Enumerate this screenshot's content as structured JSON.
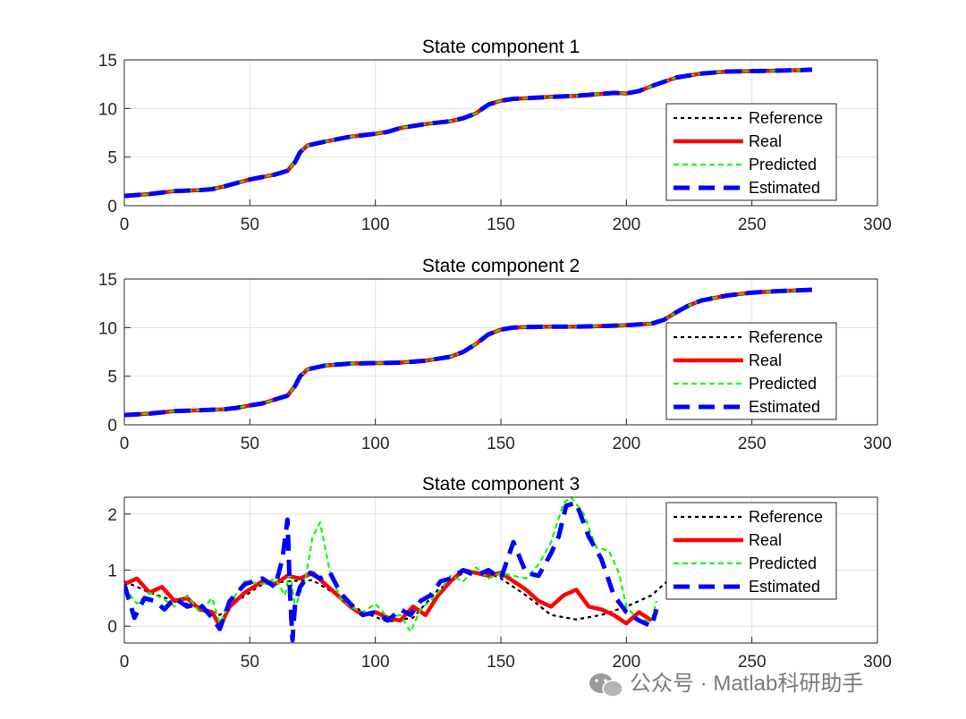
{
  "chart_data": [
    {
      "type": "line",
      "title": "State component 1",
      "xlabel": "",
      "ylabel": "",
      "xlim": [
        0,
        300
      ],
      "ylim": [
        0,
        15
      ],
      "xticks": [
        0,
        50,
        100,
        150,
        200,
        250,
        300
      ],
      "yticks": [
        0,
        5,
        10,
        15
      ],
      "grid": true,
      "legend": "bottom-right",
      "series": [
        {
          "name": "Reference",
          "color": "#000000",
          "style": "dotted"
        },
        {
          "name": "Real",
          "color": "#ff0000",
          "style": "solid"
        },
        {
          "name": "Predicted",
          "color": "#00ff00",
          "style": "dashed"
        },
        {
          "name": "Estimated",
          "color": "#0000ff",
          "style": "dashed-thick"
        }
      ],
      "x": [
        0,
        10,
        20,
        30,
        35,
        40,
        50,
        60,
        65,
        68,
        70,
        73,
        80,
        90,
        100,
        105,
        110,
        120,
        130,
        135,
        140,
        145,
        150,
        155,
        160,
        170,
        180,
        190,
        195,
        200,
        205,
        210,
        220,
        230,
        240,
        250,
        260,
        270,
        274
      ],
      "values": [
        1.0,
        1.2,
        1.5,
        1.6,
        1.7,
        2.0,
        2.7,
        3.2,
        3.6,
        4.5,
        5.5,
        6.2,
        6.6,
        7.1,
        7.4,
        7.6,
        8.0,
        8.4,
        8.7,
        9.0,
        9.5,
        10.4,
        10.8,
        11.0,
        11.05,
        11.2,
        11.3,
        11.5,
        11.6,
        11.55,
        11.8,
        12.3,
        13.2,
        13.6,
        13.8,
        13.85,
        13.9,
        13.95,
        14.0
      ]
    },
    {
      "type": "line",
      "title": "State component 2",
      "xlabel": "",
      "ylabel": "",
      "xlim": [
        0,
        300
      ],
      "ylim": [
        0,
        15
      ],
      "xticks": [
        0,
        50,
        100,
        150,
        200,
        250,
        300
      ],
      "yticks": [
        0,
        5,
        10,
        15
      ],
      "grid": true,
      "legend": "bottom-right",
      "series": [
        {
          "name": "Reference",
          "color": "#000000",
          "style": "dotted"
        },
        {
          "name": "Real",
          "color": "#ff0000",
          "style": "solid"
        },
        {
          "name": "Predicted",
          "color": "#00ff00",
          "style": "dashed"
        },
        {
          "name": "Estimated",
          "color": "#0000ff",
          "style": "dashed-thick"
        }
      ],
      "x": [
        0,
        10,
        20,
        30,
        40,
        45,
        50,
        55,
        60,
        65,
        68,
        70,
        73,
        80,
        90,
        100,
        110,
        120,
        130,
        135,
        140,
        145,
        150,
        155,
        160,
        170,
        180,
        190,
        200,
        210,
        215,
        220,
        225,
        230,
        240,
        250,
        260,
        270,
        274
      ],
      "values": [
        1.0,
        1.15,
        1.4,
        1.5,
        1.6,
        1.75,
        2.0,
        2.2,
        2.6,
        3.0,
        4.0,
        5.0,
        5.7,
        6.1,
        6.3,
        6.35,
        6.4,
        6.6,
        7.0,
        7.5,
        8.3,
        9.3,
        9.8,
        10.0,
        10.05,
        10.1,
        10.1,
        10.15,
        10.25,
        10.4,
        10.8,
        11.6,
        12.3,
        12.8,
        13.3,
        13.6,
        13.75,
        13.85,
        13.9
      ]
    },
    {
      "type": "line",
      "title": "State component 3",
      "xlabel": "",
      "ylabel": "",
      "xlim": [
        0,
        300
      ],
      "ylim": [
        -0.3,
        2.3
      ],
      "xticks": [
        0,
        50,
        100,
        150,
        200,
        250,
        300
      ],
      "yticks": [
        0,
        1,
        2
      ],
      "grid": true,
      "legend": "top-right",
      "series": [
        {
          "name": "Reference",
          "color": "#000000",
          "style": "dotted",
          "x": [
            0,
            10,
            20,
            30,
            38,
            45,
            55,
            65,
            75,
            85,
            95,
            105,
            115,
            125,
            135,
            145,
            150,
            160,
            170,
            180,
            190,
            200,
            210,
            215,
            220
          ],
          "values": [
            0.8,
            0.6,
            0.45,
            0.35,
            0.2,
            0.45,
            0.75,
            0.8,
            0.82,
            0.55,
            0.25,
            0.08,
            0.15,
            0.65,
            0.95,
            0.95,
            0.85,
            0.55,
            0.2,
            0.12,
            0.2,
            0.35,
            0.55,
            0.75,
            0.95
          ]
        },
        {
          "name": "Real",
          "color": "#ff0000",
          "style": "solid",
          "x": [
            0,
            5,
            10,
            15,
            20,
            25,
            30,
            35,
            38,
            42,
            48,
            55,
            60,
            65,
            70,
            75,
            80,
            85,
            90,
            95,
            100,
            105,
            110,
            115,
            120,
            125,
            130,
            135,
            140,
            145,
            150,
            155,
            160,
            165,
            170,
            175,
            180,
            185,
            190,
            195,
            200,
            205,
            210
          ],
          "values": [
            0.75,
            0.85,
            0.6,
            0.7,
            0.45,
            0.5,
            0.3,
            0.25,
            0.0,
            0.35,
            0.6,
            0.8,
            0.75,
            0.9,
            0.85,
            0.95,
            0.75,
            0.55,
            0.35,
            0.2,
            0.25,
            0.15,
            0.1,
            0.35,
            0.2,
            0.55,
            0.8,
            1.0,
            0.95,
            0.9,
            0.95,
            0.8,
            0.65,
            0.45,
            0.35,
            0.55,
            0.65,
            0.35,
            0.3,
            0.2,
            0.05,
            0.25,
            0.1
          ]
        },
        {
          "name": "Predicted",
          "color": "#00ff00",
          "style": "dashed",
          "x": [
            0,
            5,
            10,
            15,
            20,
            25,
            30,
            35,
            38,
            42,
            48,
            55,
            60,
            64,
            66,
            68,
            70,
            72,
            75,
            78,
            82,
            86,
            90,
            95,
            100,
            105,
            110,
            114,
            118,
            122,
            126,
            130,
            135,
            140,
            145,
            150,
            155,
            160,
            165,
            170,
            175,
            178,
            183,
            188,
            193,
            197,
            200,
            205,
            210,
            212
          ],
          "values": [
            0.7,
            0.4,
            0.6,
            0.5,
            0.35,
            0.55,
            0.25,
            0.5,
            0.05,
            0.4,
            0.8,
            0.75,
            0.85,
            0.55,
            1.0,
            0.3,
            0.6,
            0.8,
            1.6,
            1.85,
            0.95,
            0.5,
            0.35,
            0.25,
            0.4,
            0.15,
            0.2,
            -0.1,
            0.3,
            0.45,
            0.65,
            0.9,
            0.8,
            1.05,
            0.85,
            0.95,
            0.9,
            0.85,
            1.1,
            1.5,
            2.2,
            2.3,
            2.0,
            1.4,
            1.35,
            0.95,
            0.35,
            0.1,
            0.1,
            0.45
          ]
        },
        {
          "name": "Estimated",
          "color": "#0000ff",
          "style": "dashed-thick",
          "x": [
            0,
            4,
            8,
            12,
            16,
            20,
            25,
            30,
            35,
            38,
            42,
            48,
            55,
            60,
            63,
            65,
            66,
            67,
            68,
            70,
            74,
            78,
            82,
            86,
            90,
            95,
            100,
            105,
            110,
            114,
            118,
            122,
            126,
            130,
            135,
            140,
            145,
            150,
            155,
            160,
            165,
            170,
            173,
            176,
            180,
            185,
            190,
            195,
            200,
            205,
            210,
            212
          ],
          "values": [
            0.75,
            0.15,
            0.5,
            0.45,
            0.3,
            0.5,
            0.35,
            0.4,
            0.15,
            -0.05,
            0.45,
            0.75,
            0.85,
            0.7,
            1.2,
            1.9,
            0.6,
            -0.25,
            0.4,
            0.7,
            0.95,
            0.85,
            0.95,
            0.6,
            0.4,
            0.2,
            0.25,
            0.1,
            0.3,
            0.2,
            0.45,
            0.55,
            0.8,
            0.85,
            1.0,
            0.9,
            1.0,
            0.85,
            1.5,
            0.95,
            0.9,
            1.3,
            1.6,
            2.15,
            2.2,
            1.6,
            1.2,
            0.55,
            0.25,
            0.1,
            0.0,
            0.3
          ]
        }
      ]
    }
  ],
  "watermark": {
    "text": "公众号 · Matlab科研助手",
    "icon": "wechat-icon"
  }
}
